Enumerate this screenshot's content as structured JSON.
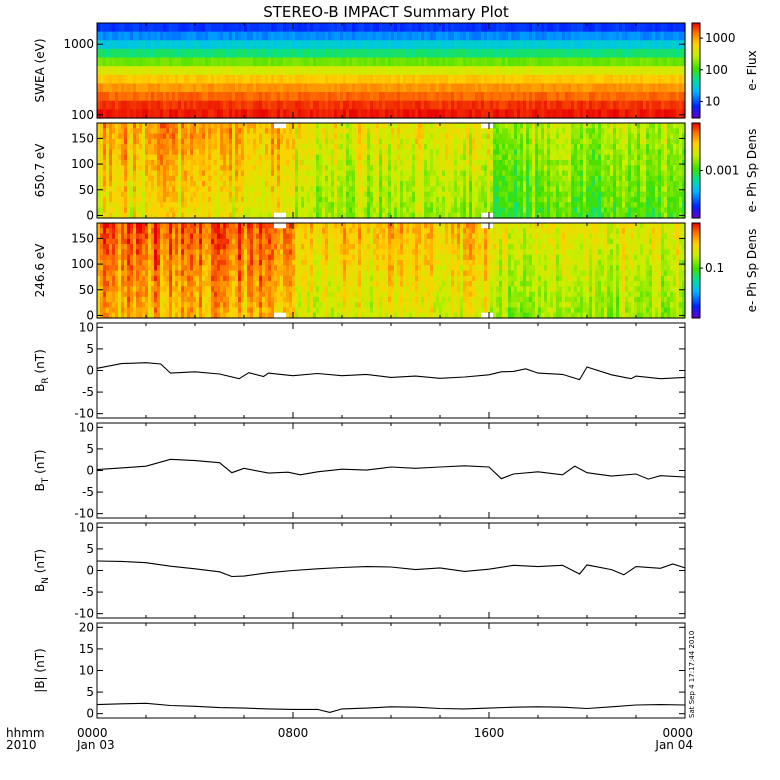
{
  "title": "STEREO-B IMPACT Summary Plot",
  "footer": {
    "row1_label": "hhmm",
    "row2_label": "2010",
    "side_stamp": "Sat Sep  4 17:17:44 2010"
  },
  "colors": {
    "trace": "#000000",
    "frame": "#000000",
    "background": "#ffffff",
    "gap_fill": "#ffffff"
  },
  "chart_data": [
    {
      "type": "heatmap",
      "id": "swea",
      "ylabel": "SWEA (eV)",
      "yscale": "log",
      "ylim": [
        90,
        2000
      ],
      "yticks": [
        "1000",
        "100"
      ],
      "yticks_values": [
        1000,
        100
      ],
      "colorbar": {
        "label": "e- Flux",
        "scale": "log",
        "range": [
          3,
          3000
        ],
        "ticks": [
          "1000",
          "100",
          "10"
        ],
        "ticks_values": [
          1000,
          100,
          10
        ]
      },
      "energy_bins_eV": [
        2000,
        1500,
        1100,
        800,
        600,
        450,
        340,
        250,
        180,
        130,
        95
      ],
      "typical_flux": [
        8,
        15,
        30,
        60,
        150,
        350,
        700,
        1100,
        1600,
        2200,
        2600
      ]
    },
    {
      "type": "heatmap",
      "id": "pad650",
      "ylabel": "650.7 eV",
      "ylim": [
        -5,
        180
      ],
      "yticks": [
        "150",
        "100",
        "50",
        "0"
      ],
      "yticks_values": [
        150,
        100,
        50,
        0
      ],
      "colorbar": {
        "label": "e- Ph Sp Dens",
        "scale": "log",
        "range": [
          5e-05,
          0.02
        ],
        "ticks": [
          "0.001"
        ],
        "ticks_values": [
          0.001
        ]
      },
      "data_gaps_hours": [
        [
          7.2,
          7.6
        ],
        [
          15.6,
          16.1
        ]
      ]
    },
    {
      "type": "heatmap",
      "id": "pad246",
      "ylabel": "246.6 eV",
      "ylim": [
        -5,
        180
      ],
      "yticks": [
        "150",
        "100",
        "50",
        "0"
      ],
      "yticks_values": [
        150,
        100,
        50,
        0
      ],
      "colorbar": {
        "label": "e- Ph Sp Dens",
        "scale": "log",
        "range": [
          0.005,
          1.5
        ],
        "ticks": [
          "0.1"
        ],
        "ticks_values": [
          0.1
        ]
      },
      "data_gaps_hours": [
        [
          7.2,
          7.6
        ],
        [
          15.6,
          16.1
        ]
      ]
    },
    {
      "type": "line",
      "id": "br",
      "ylabel": "B",
      "ylabel_sub": "R",
      "ylabel_unit": " (nT)",
      "ylim": [
        -11,
        11
      ],
      "yticks": [
        "10",
        "5",
        "0",
        "-5",
        "-10"
      ],
      "yticks_values": [
        10,
        5,
        0,
        -5,
        -10
      ],
      "x_hours": [
        0,
        1,
        2,
        2.6,
        3,
        4,
        5,
        5.8,
        6.2,
        6.8,
        7,
        7.5,
        8,
        9,
        10,
        11,
        12,
        13,
        14,
        15,
        16,
        16.5,
        17,
        17.5,
        18,
        19,
        19.7,
        20,
        21,
        21.8,
        22,
        23,
        24
      ],
      "y": [
        0.5,
        1.6,
        1.8,
        1.5,
        -0.6,
        -0.3,
        -0.8,
        -1.9,
        -0.5,
        -1.4,
        -0.6,
        -0.9,
        -1.2,
        -0.7,
        -1.2,
        -0.9,
        -1.6,
        -1.3,
        -1.8,
        -1.5,
        -1.0,
        -0.3,
        -0.2,
        0.4,
        -0.6,
        -0.9,
        -2.1,
        0.8,
        -1.0,
        -1.9,
        -1.3,
        -1.9,
        -1.6
      ]
    },
    {
      "type": "line",
      "id": "bt",
      "ylabel": "B",
      "ylabel_sub": "T",
      "ylabel_unit": " (nT)",
      "ylim": [
        -11,
        11
      ],
      "yticks": [
        "10",
        "5",
        "0",
        "-5",
        "-10"
      ],
      "yticks_values": [
        10,
        5,
        0,
        -5,
        -10
      ],
      "x_hours": [
        0,
        1,
        2,
        3,
        4,
        5,
        5.5,
        6,
        7,
        7.8,
        8.3,
        9,
        10,
        11,
        12,
        13,
        14,
        15,
        16,
        16.5,
        17,
        18,
        19,
        19.5,
        20,
        21,
        22,
        22.5,
        23,
        24
      ],
      "y": [
        0.2,
        0.6,
        1.0,
        2.6,
        2.3,
        1.8,
        -0.5,
        0.5,
        -0.6,
        -0.4,
        -1.0,
        -0.3,
        0.3,
        0.1,
        0.8,
        0.5,
        0.8,
        1.1,
        0.8,
        -1.9,
        -0.8,
        -0.3,
        -1.0,
        1.0,
        -0.5,
        -1.3,
        -0.8,
        -2.0,
        -1.2,
        -1.5
      ]
    },
    {
      "type": "line",
      "id": "bn",
      "ylabel": "B",
      "ylabel_sub": "N",
      "ylabel_unit": " (nT)",
      "ylim": [
        -11,
        11
      ],
      "yticks": [
        "10",
        "5",
        "0",
        "-5",
        "-10"
      ],
      "yticks_values": [
        10,
        5,
        0,
        -5,
        -10
      ],
      "x_hours": [
        0,
        1,
        2,
        3,
        4,
        5,
        5.5,
        6,
        7,
        8,
        9,
        10,
        11,
        12,
        13,
        14,
        15,
        16,
        17,
        18,
        19,
        19.7,
        20,
        21,
        21.5,
        22,
        23,
        23.5,
        24
      ],
      "y": [
        2.2,
        2.1,
        1.8,
        1.0,
        0.4,
        -0.3,
        -1.4,
        -1.3,
        -0.5,
        0.0,
        0.4,
        0.7,
        0.9,
        0.8,
        0.2,
        0.6,
        -0.2,
        0.3,
        1.2,
        0.9,
        1.2,
        -0.8,
        1.3,
        0.2,
        -1.0,
        0.9,
        0.5,
        1.5,
        0.6
      ]
    },
    {
      "type": "line",
      "id": "bmag",
      "ylabel": "|B| (nT)",
      "ylim": [
        -1,
        21
      ],
      "yticks": [
        "20",
        "15",
        "10",
        "5",
        "0"
      ],
      "yticks_values": [
        20,
        15,
        10,
        5,
        0
      ],
      "x_hours": [
        0,
        1,
        2,
        3,
        4,
        5,
        6,
        7,
        8,
        9,
        9.5,
        10,
        11,
        12,
        13,
        14,
        15,
        16,
        17,
        18,
        19,
        20,
        21,
        22,
        23,
        24
      ],
      "y": [
        2.1,
        2.3,
        2.4,
        1.9,
        1.7,
        1.4,
        1.3,
        1.1,
        1.0,
        1.0,
        0.3,
        1.1,
        1.3,
        1.6,
        1.5,
        1.2,
        1.1,
        1.3,
        1.5,
        1.6,
        1.5,
        1.2,
        1.6,
        2.0,
        2.1,
        2.0
      ]
    }
  ],
  "x_axis": {
    "range_hours": [
      0,
      24
    ],
    "tick_hours": [
      0,
      8,
      16,
      24
    ],
    "tick_labels_row1": [
      "0000",
      "0800",
      "1600",
      "0000"
    ],
    "tick_labels_row2": [
      "Jan 03",
      "",
      "",
      "Jan 04"
    ]
  }
}
